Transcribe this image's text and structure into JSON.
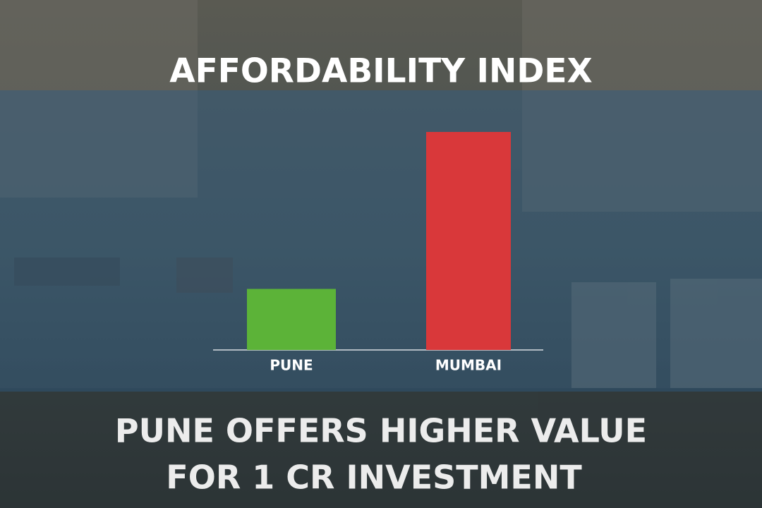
{
  "chart_data": {
    "type": "bar",
    "title": "AFFORDABILITY INDEX",
    "categories": [
      "PUNE",
      "MUMBAI"
    ],
    "values": [
      28,
      100
    ],
    "colors": [
      "#5cb338",
      "#d9383a"
    ],
    "caption": [
      "PUNE OFFERS HIGHER VALUE",
      "FOR 1 CR INVESTMENT"
    ]
  }
}
